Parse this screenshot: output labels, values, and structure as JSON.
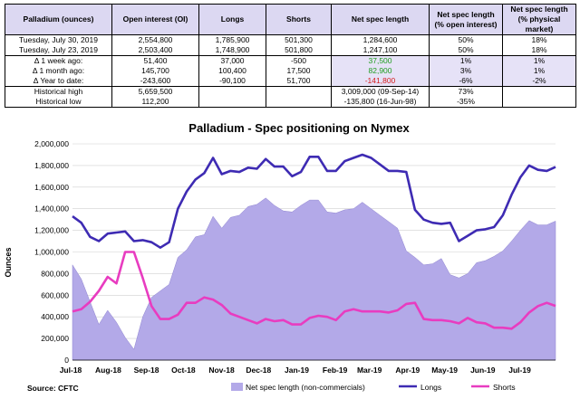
{
  "table": {
    "headers": [
      "Palladium (ounces)",
      "Open interest (OI)",
      "Longs",
      "Shorts",
      "Net spec length",
      "Net spec length (% open interest)",
      "Net spec length (% physical market)"
    ],
    "rows": [
      {
        "label": "Tuesday, July 30, 2019",
        "oi": "2,554,800",
        "longs": "1,785,900",
        "shorts": "501,300",
        "net": "1,284,600",
        "pct_oi": "50%",
        "pct_phys": "18%"
      },
      {
        "label": "Tuesday, July 23, 2019",
        "oi": "2,503,400",
        "longs": "1,748,900",
        "shorts": "501,800",
        "net": "1,247,100",
        "pct_oi": "50%",
        "pct_phys": "18%"
      },
      {
        "label": "Δ 1 week ago:",
        "oi": "51,400",
        "longs": "37,000",
        "shorts": "-500",
        "net": "37,500",
        "pct_oi": "1%",
        "pct_phys": "1%"
      },
      {
        "label": "Δ 1 month ago:",
        "oi": "145,700",
        "longs": "100,400",
        "shorts": "17,500",
        "net": "82,900",
        "pct_oi": "3%",
        "pct_phys": "1%"
      },
      {
        "label": "Δ Year to date:",
        "oi": "-243,600",
        "longs": "-90,100",
        "shorts": "51,700",
        "net": "-141,800",
        "pct_oi": "-6%",
        "pct_phys": "-2%"
      },
      {
        "label": "Historical high",
        "oi": "5,659,500",
        "longs": "",
        "shorts": "",
        "net": "3,009,000  (09-Sep-14)",
        "pct_oi": "73%",
        "pct_phys": ""
      },
      {
        "label": "Historical low",
        "oi": "112,200",
        "longs": "",
        "shorts": "",
        "net": "-135,800  (16-Jun-98)",
        "pct_oi": "-35%",
        "pct_phys": ""
      }
    ]
  },
  "chart_data": {
    "type": "line",
    "title": "Palladium - Spec positioning on Nymex",
    "ylabel": "Ounces",
    "ylim": [
      0,
      2000000
    ],
    "yticks": [
      "0",
      "200,000",
      "400,000",
      "600,000",
      "800,000",
      "1,000,000",
      "1,200,000",
      "1,400,000",
      "1,600,000",
      "1,800,000",
      "2,000,000"
    ],
    "xticks": [
      "Jul-18",
      "Aug-18",
      "Sep-18",
      "Oct-18",
      "Nov-18",
      "Dec-18",
      "Jan-19",
      "Feb-19",
      "Mar-19",
      "Apr-19",
      "May-19",
      "Jun-19",
      "Jul-19"
    ],
    "x_start": "2018-07-03",
    "x_end": "2019-07-30",
    "legend": [
      "Net spec length (non-commercials)",
      "Longs",
      "Shorts"
    ],
    "source": "Source: CFTC",
    "colors": {
      "net": "#b3a9e8",
      "longs": "#3e2bb3",
      "shorts": "#e83cc0"
    },
    "series": [
      {
        "name": "Net spec length (non-commercials)",
        "type": "area",
        "values": [
          880000,
          750000,
          540000,
          330000,
          460000,
          350000,
          210000,
          100000,
          400000,
          580000,
          640000,
          700000,
          950000,
          1020000,
          1140000,
          1160000,
          1330000,
          1220000,
          1320000,
          1340000,
          1420000,
          1440000,
          1500000,
          1430000,
          1380000,
          1370000,
          1430000,
          1480000,
          1480000,
          1370000,
          1360000,
          1390000,
          1400000,
          1460000,
          1400000,
          1340000,
          1280000,
          1220000,
          1010000,
          950000,
          880000,
          890000,
          940000,
          790000,
          760000,
          800000,
          900000,
          920000,
          960000,
          1010000,
          1100000,
          1200000,
          1290000,
          1250000,
          1250000,
          1285000
        ]
      },
      {
        "name": "Longs",
        "type": "line",
        "values": [
          1330000,
          1270000,
          1140000,
          1100000,
          1170000,
          1180000,
          1190000,
          1100000,
          1110000,
          1090000,
          1040000,
          1090000,
          1400000,
          1560000,
          1670000,
          1730000,
          1870000,
          1720000,
          1750000,
          1740000,
          1780000,
          1770000,
          1860000,
          1790000,
          1790000,
          1700000,
          1740000,
          1880000,
          1880000,
          1750000,
          1750000,
          1840000,
          1870000,
          1900000,
          1870000,
          1810000,
          1750000,
          1750000,
          1740000,
          1390000,
          1300000,
          1270000,
          1260000,
          1270000,
          1100000,
          1150000,
          1200000,
          1210000,
          1230000,
          1340000,
          1530000,
          1690000,
          1800000,
          1760000,
          1750000,
          1786000
        ]
      },
      {
        "name": "Shorts",
        "type": "line",
        "values": [
          450000,
          470000,
          540000,
          640000,
          770000,
          710000,
          1000000,
          1000000,
          760000,
          500000,
          380000,
          380000,
          420000,
          530000,
          530000,
          580000,
          560000,
          510000,
          430000,
          400000,
          370000,
          340000,
          380000,
          360000,
          370000,
          330000,
          330000,
          390000,
          410000,
          400000,
          370000,
          450000,
          470000,
          450000,
          450000,
          450000,
          440000,
          460000,
          520000,
          530000,
          380000,
          370000,
          370000,
          360000,
          340000,
          390000,
          350000,
          340000,
          300000,
          300000,
          290000,
          350000,
          440000,
          500000,
          530000,
          501000
        ]
      }
    ]
  }
}
